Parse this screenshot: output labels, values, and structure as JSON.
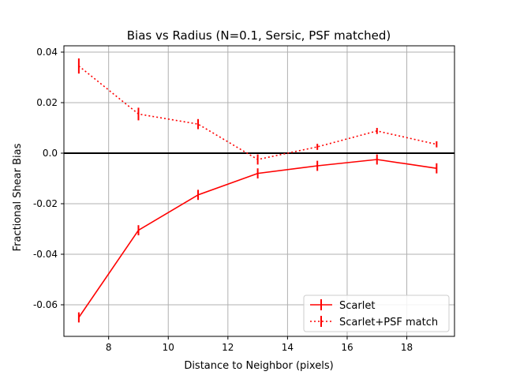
{
  "chart_data": {
    "type": "line",
    "title": "Bias vs Radius (N=0.1, Sersic, PSF matched)",
    "xlabel": "Distance to Neighbor (pixels)",
    "ylabel": "Fractional Shear Bias",
    "xlim": [
      6.5,
      19.6
    ],
    "ylim": [
      -0.0725,
      0.0425
    ],
    "xticks": [
      8,
      10,
      12,
      14,
      16,
      18
    ],
    "yticks": [
      0.04,
      0.02,
      0.0,
      -0.02,
      -0.04,
      -0.06
    ],
    "ytick_labels": [
      "0.04",
      "0.02",
      "0.0",
      "-0.02",
      "-0.04",
      "-0.06"
    ],
    "hline": 0.0,
    "grid": true,
    "legend_position": "lower-right",
    "series": [
      {
        "name": "Scarlet",
        "color": "#ff0000",
        "linestyle": "solid",
        "x": [
          7,
          9,
          11,
          13,
          15,
          17,
          19
        ],
        "y": [
          -0.065,
          -0.0305,
          -0.0165,
          -0.008,
          -0.005,
          -0.0025,
          -0.006
        ],
        "yerr": [
          0.002,
          0.002,
          0.002,
          0.002,
          0.002,
          0.002,
          0.002
        ]
      },
      {
        "name": "Scarlet+PSF match",
        "color": "#ff0000",
        "linestyle": "dotted",
        "x": [
          7,
          9,
          11,
          13,
          15,
          17,
          19
        ],
        "y": [
          0.0345,
          0.0155,
          0.0115,
          -0.0025,
          0.0025,
          0.0088,
          0.0035
        ],
        "yerr": [
          0.003,
          0.0025,
          0.002,
          0.002,
          0.0012,
          0.0012,
          0.0012
        ]
      }
    ]
  }
}
